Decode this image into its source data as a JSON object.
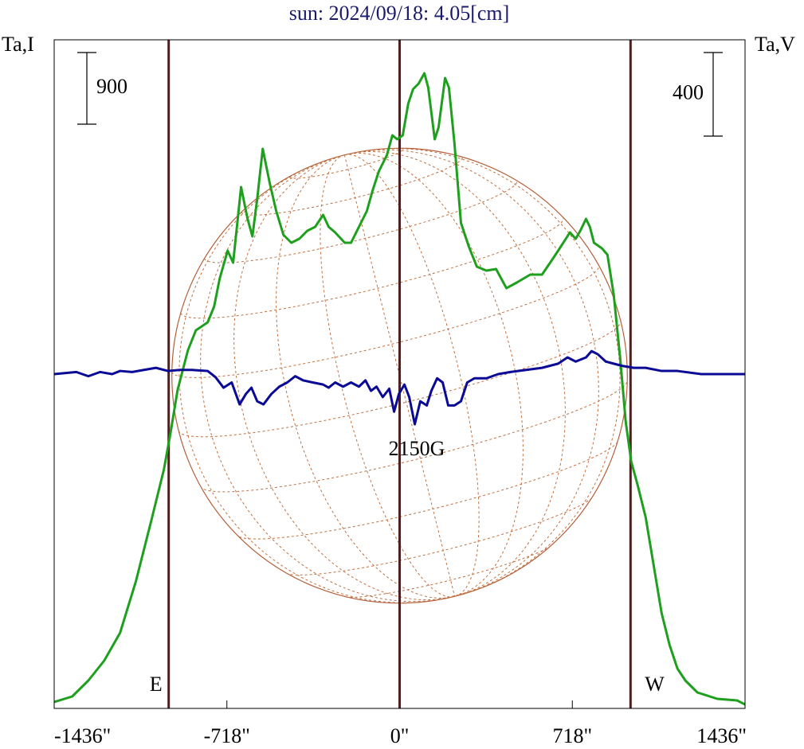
{
  "chart_data": {
    "type": "line",
    "title": "sun: 2024/09/18: 4.05[cm]",
    "y_label": "Ta,I",
    "y2_label": "Ta,V",
    "annotation": "2150G",
    "xlim": [
      -1436,
      1436
    ],
    "xticks": [
      {
        "value": -1436,
        "label": "-1436\""
      },
      {
        "value": -718,
        "label": "-718\""
      },
      {
        "value": 0,
        "label": "0\""
      },
      {
        "value": 718,
        "label": "718\""
      },
      {
        "value": 1436,
        "label": "1436\""
      }
    ],
    "ylim": [
      0,
      8400
    ],
    "y2lim": [
      -1600,
      1600
    ],
    "scale_bars": [
      {
        "value": 900,
        "axis": "y"
      },
      {
        "value": 400,
        "axis": "y2"
      }
    ],
    "limb_lines": {
      "x": [
        -960,
        0,
        960
      ],
      "labels": [
        "E",
        null,
        "W"
      ],
      "color": "#4a2020"
    },
    "series": [
      {
        "name": "Ta,I",
        "color": "#1ea01e",
        "axis": "y",
        "x": [
          -1436,
          -1361,
          -1294,
          -1228,
          -1162,
          -1096,
          -1029,
          -980,
          -953,
          -923,
          -880,
          -847,
          -798,
          -771,
          -748,
          -715,
          -692,
          -659,
          -632,
          -612,
          -592,
          -569,
          -540,
          -513,
          -483,
          -450,
          -417,
          -384,
          -351,
          -318,
          -295,
          -268,
          -228,
          -202,
          -169,
          -136,
          -113,
          -86,
          -53,
          -30,
          -10,
          13,
          36,
          56,
          79,
          103,
          119,
          146,
          162,
          189,
          205,
          228,
          255,
          288,
          321,
          361,
          401,
          444,
          487,
          543,
          592,
          626,
          659,
          708,
          732,
          751,
          775,
          791,
          808,
          841,
          864,
          890,
          917,
          940,
          963,
          990,
          1023,
          1056,
          1089,
          1122,
          1155,
          1188,
          1238,
          1321,
          1403,
          1436
        ],
        "values": [
          80,
          150,
          350,
          600,
          950,
          1600,
          2400,
          3000,
          3450,
          4000,
          4500,
          4750,
          4850,
          5050,
          5400,
          5750,
          5600,
          6550,
          6150,
          5930,
          6400,
          7030,
          6600,
          6250,
          5950,
          5850,
          5900,
          6000,
          6050,
          6200,
          6050,
          5980,
          5850,
          5850,
          6050,
          6250,
          6500,
          6750,
          6950,
          7200,
          7150,
          7200,
          7600,
          7780,
          7850,
          7980,
          7800,
          7150,
          7300,
          7920,
          7800,
          7100,
          6100,
          5800,
          5550,
          5500,
          5520,
          5280,
          5350,
          5450,
          5450,
          5600,
          5750,
          5980,
          5900,
          6000,
          6150,
          6050,
          5850,
          5780,
          5700,
          5200,
          4400,
          3600,
          3100,
          2800,
          2400,
          1800,
          1200,
          800,
          500,
          350,
          200,
          120,
          100,
          50
        ]
      },
      {
        "name": "Ta,V",
        "color": "#0a0a96",
        "axis": "y2",
        "x": [
          -1436,
          -1344,
          -1294,
          -1245,
          -1195,
          -1162,
          -1112,
          -1063,
          -1013,
          -963,
          -914,
          -864,
          -798,
          -765,
          -732,
          -698,
          -665,
          -639,
          -616,
          -592,
          -566,
          -533,
          -500,
          -467,
          -434,
          -401,
          -361,
          -318,
          -295,
          -268,
          -235,
          -202,
          -169,
          -142,
          -119,
          -96,
          -70,
          -43,
          -23,
          -3,
          20,
          40,
          63,
          86,
          113,
          132,
          156,
          179,
          202,
          228,
          255,
          281,
          311,
          361,
          410,
          460,
          526,
          592,
          659,
          698,
          732,
          775,
          798,
          824,
          857,
          890,
          923,
          973,
          1023,
          1089,
          1155,
          1254,
          1436
        ],
        "values": [
          0,
          10,
          -10,
          10,
          0,
          15,
          10,
          20,
          30,
          15,
          20,
          20,
          15,
          -15,
          -65,
          -40,
          -145,
          -95,
          -65,
          -130,
          -145,
          -95,
          -60,
          -40,
          -10,
          -30,
          -40,
          -50,
          -65,
          -40,
          -60,
          -40,
          -60,
          -30,
          -80,
          -60,
          -110,
          -70,
          -180,
          -95,
          -50,
          -110,
          -240,
          -130,
          -150,
          -80,
          -20,
          -40,
          -150,
          -150,
          -130,
          -40,
          -20,
          -20,
          0,
          10,
          20,
          30,
          50,
          80,
          60,
          80,
          110,
          95,
          60,
          50,
          40,
          30,
          30,
          15,
          15,
          0,
          0
        ]
      }
    ]
  }
}
